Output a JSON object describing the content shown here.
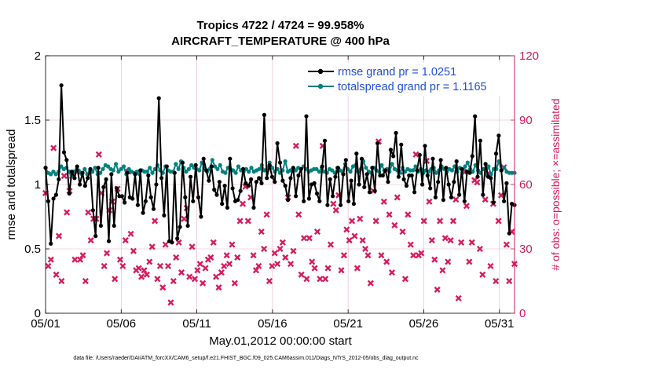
{
  "chart_data": {
    "type": "line",
    "title_line1": "Tropics 4722 / 4724 = 99.958%",
    "title_line2": "AIRCRAFT_TEMPERATURE @ 400 hPa",
    "xlabel": "May.01,2012 00:00:00 start",
    "ylabel_left": "rmse and totalspread",
    "ylabel_right": "# of obs: o=possible; ×=assimilated",
    "footer": "data file: /Users/raeder/DAI/ATM_forcXX/CAM6_setup/f.e21.FHIST_BGC.f09_025.CAM6assim.011/Diags_NTrS_2012-05/obs_diag_output.nc",
    "xlim": [
      1,
      32
    ],
    "ylim_left": [
      0,
      2
    ],
    "ylim_right": [
      0,
      120
    ],
    "x_tick_labels": [
      "05/01",
      "05/06",
      "05/11",
      "05/16",
      "05/21",
      "05/26",
      "05/31"
    ],
    "x_tick_days": [
      1,
      6,
      11,
      16,
      21,
      26,
      31
    ],
    "y_left_tick_labels": [
      "0",
      "0.5",
      "1",
      "1.5",
      "2"
    ],
    "y_right_tick_labels": [
      "0",
      "30",
      "60",
      "90",
      "120"
    ],
    "colors": {
      "rmse": "#000000",
      "spread": "#00827f",
      "obs": "#d81b60",
      "legend_text": "#1f4fd6",
      "right_axis": "#cc1b5a"
    },
    "series": [
      {
        "name": "rmse grand pr = 1.0251",
        "values": [
          1.13,
          0.87,
          0.54,
          0.89,
          0.92,
          1.04,
          1.77,
          1.25,
          1.19,
          0.93,
          1.1,
          1.05,
          1.14,
          1.0,
          1.09,
          0.99,
          1.05,
          1.12,
          0.8,
          0.6,
          1.13,
          0.68,
          0.98,
          1.04,
          0.56,
          1.08,
          0.68,
          0.97,
          0.91,
          0.91,
          0.86,
          1.09,
          0.9,
          0.89,
          1.08,
          0.84,
          1.11,
          0.78,
          0.87,
          1.07,
          0.9,
          0.81,
          1.0,
          1.67,
          1.05,
          0.76,
          1.14,
          0.56,
          0.55,
          1.09,
          0.58,
          0.67,
          1.17,
          0.9,
          0.68,
          1.06,
          0.87,
          1.15,
          0.9,
          0.75,
          1.2,
          1.11,
          1.03,
          1.14,
          0.96,
          0.92,
          1.02,
          0.85,
          0.99,
          0.82,
          1.2,
          0.97,
          0.87,
          0.88,
          0.95,
          1.12,
          1.01,
          0.99,
          1.04,
          0.82,
          1.02,
          1.05,
          1.01,
          1.54,
          1.05,
          1.15,
          1.06,
          1.02,
          1.32,
          1.17,
          1.03,
          0.99,
          0.88,
          1.05,
          1.13,
          0.91,
          1.07,
          1.12,
          0.87,
          1.53,
          0.89,
          1.0,
          1.01,
          0.93,
          0.87,
          1.14,
          1.34,
          0.84,
          1.04,
          0.91,
          1.06,
          1.13,
          0.84,
          1.08,
          1.19,
          0.87,
          1.03,
          0.85,
          1.24,
          1.0,
          1.2,
          0.98,
          1.08,
          0.94,
          1.13,
          0.95,
          1.32,
          1.07,
          1.07,
          1.11,
          1.02,
          1.27,
          1.22,
          1.4,
          1.06,
          1.31,
          1.04,
          0.99,
          1.07,
          1.07,
          0.94,
          1.11,
          1.23,
          1.0,
          1.3,
          1.07,
          0.97,
          1.2,
          0.9,
          1.02,
          1.19,
          0.88,
          1.13,
          1.0,
          0.9,
          1.02,
          1.18,
          0.92,
          1.12,
          0.87,
          1.1,
          1.09,
          1.22,
          1.53,
          1.06,
          1.34,
          0.92,
          1.16,
          1.06,
          1.05,
          0.86,
          1.24,
          1.38,
          1.11,
          0.87,
          1.01,
          0.62,
          0.85,
          0.84
        ]
      },
      {
        "name": "totalspread grand pr = 1.1165",
        "values": [
          1.13,
          1.09,
          1.08,
          1.1,
          1.08,
          1.1,
          1.14,
          1.12,
          1.13,
          1.1,
          1.07,
          1.1,
          1.12,
          1.1,
          1.08,
          1.12,
          1.08,
          1.1,
          1.1,
          1.13,
          1.08,
          1.09,
          1.12,
          1.15,
          1.14,
          1.12,
          1.11,
          1.16,
          1.1,
          1.12,
          1.14,
          1.08,
          1.12,
          1.1,
          1.09,
          1.1,
          1.08,
          1.11,
          1.1,
          1.1,
          1.13,
          1.09,
          1.12,
          1.15,
          1.11,
          1.09,
          1.14,
          1.11,
          1.1,
          1.1,
          1.16,
          1.12,
          1.18,
          1.13,
          1.1,
          1.12,
          1.15,
          1.13,
          1.12,
          1.11,
          1.17,
          1.13,
          1.1,
          1.12,
          1.19,
          1.14,
          1.12,
          1.15,
          1.1,
          1.09,
          1.13,
          1.12,
          1.11,
          1.09,
          1.14,
          1.11,
          1.1,
          1.12,
          1.1,
          1.13,
          1.1,
          1.11,
          1.12,
          1.15,
          1.11,
          1.12,
          1.17,
          1.13,
          1.1,
          1.12,
          1.09,
          1.11,
          1.18,
          1.1,
          1.11,
          1.12,
          1.11,
          1.13,
          1.12,
          1.14,
          1.12,
          1.1,
          1.11,
          1.12,
          1.12,
          1.1,
          1.13,
          1.1,
          1.09,
          1.12,
          1.11,
          1.09,
          1.13,
          1.11,
          1.1,
          1.16,
          1.12,
          1.1,
          1.14,
          1.15,
          1.1,
          1.12,
          1.18,
          1.13,
          1.1,
          1.09,
          1.13,
          1.11,
          1.1,
          1.15,
          1.11,
          1.12,
          1.1,
          1.16,
          1.12,
          1.11,
          1.09,
          1.13,
          1.1,
          1.12,
          1.11,
          1.11,
          1.14,
          1.1,
          1.12,
          1.09,
          1.11,
          1.1,
          1.12,
          1.13,
          1.09,
          1.11,
          1.14,
          1.12,
          1.1,
          1.12,
          1.11,
          1.14,
          1.1,
          1.13,
          1.09,
          1.14,
          1.17,
          1.12,
          1.1,
          1.15,
          1.11,
          1.09,
          1.12,
          1.09,
          1.14,
          1.08,
          1.12,
          1.12,
          1.18,
          1.11,
          1.13,
          1.1,
          1.09,
          1.09,
          1.09
        ]
      }
    ],
    "obs_assimilated": {
      "name": "# of obs assimilated",
      "values": [
        56,
        22,
        25,
        77,
        18,
        36,
        15,
        64,
        47,
        57,
        64,
        25,
        66,
        25,
        27,
        15,
        47,
        34,
        44,
        44,
        74,
        56,
        22,
        28,
        48,
        52,
        16,
        58,
        25,
        22,
        34,
        66,
        37,
        29,
        20,
        21,
        17,
        20,
        18,
        24,
        31,
        43,
        16,
        22,
        12,
        32,
        22,
        5,
        15,
        26,
        33,
        19,
        44,
        49,
        17,
        31,
        16,
        20,
        23,
        14,
        21,
        25,
        26,
        33,
        17,
        12,
        19,
        22,
        27,
        23,
        32,
        14,
        26,
        43,
        51,
        59,
        43,
        54,
        27,
        20,
        22,
        38,
        30,
        46,
        15,
        22,
        28,
        23,
        30,
        33,
        26,
        54,
        23,
        29,
        78,
        46,
        18,
        35,
        16,
        35,
        24,
        21,
        38,
        16,
        78,
        16,
        21,
        32,
        51,
        48,
        55,
        20,
        27,
        39,
        34,
        43,
        36,
        21,
        44,
        34,
        30,
        27,
        14,
        57,
        43,
        80,
        27,
        52,
        24,
        46,
        19,
        41,
        54,
        66,
        38,
        16,
        46,
        32,
        27,
        74,
        27,
        28,
        43,
        71,
        52,
        34,
        25,
        11,
        43,
        20,
        35,
        24,
        34,
        43,
        53,
        7,
        33,
        66,
        50,
        24,
        33,
        62,
        61,
        30,
        18,
        53,
        65,
        22,
        51,
        15,
        43,
        55,
        68,
        32,
        15,
        38,
        23
      ]
    }
  }
}
